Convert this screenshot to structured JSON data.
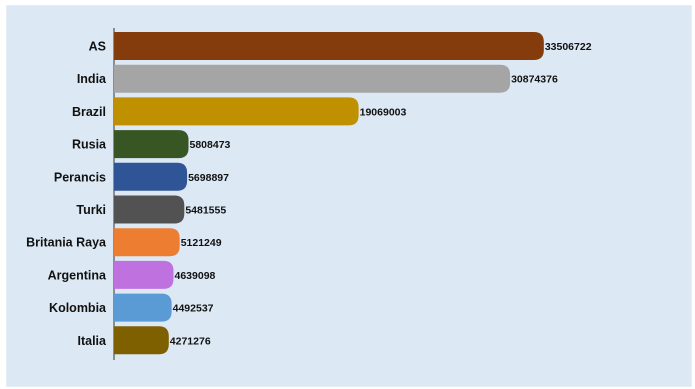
{
  "chart_data": {
    "type": "bar",
    "orientation": "horizontal",
    "categories": [
      "AS",
      "India",
      "Brazil",
      "Rusia",
      "Perancis",
      "Turki",
      "Britania Raya",
      "Argentina",
      "Kolombia",
      "Italia"
    ],
    "values": [
      33506722,
      30874376,
      19069003,
      5808473,
      5698897,
      5481555,
      5121249,
      4639098,
      4492537,
      4271276
    ],
    "value_labels": [
      "33506722",
      "30874376",
      "19069003",
      "5808473",
      "5698897",
      "5481555",
      "5121249",
      "4639098",
      "4492537",
      "4271276"
    ],
    "colors": [
      "#843c0c",
      "#a5a5a5",
      "#bf9000",
      "#375623",
      "#2f5597",
      "#525252",
      "#ed7d31",
      "#c071e0",
      "#5b9bd5",
      "#7f6000"
    ],
    "xlim": [
      0,
      35000000
    ],
    "grid": false,
    "legend": "none",
    "title": "",
    "xlabel": "",
    "ylabel": ""
  }
}
